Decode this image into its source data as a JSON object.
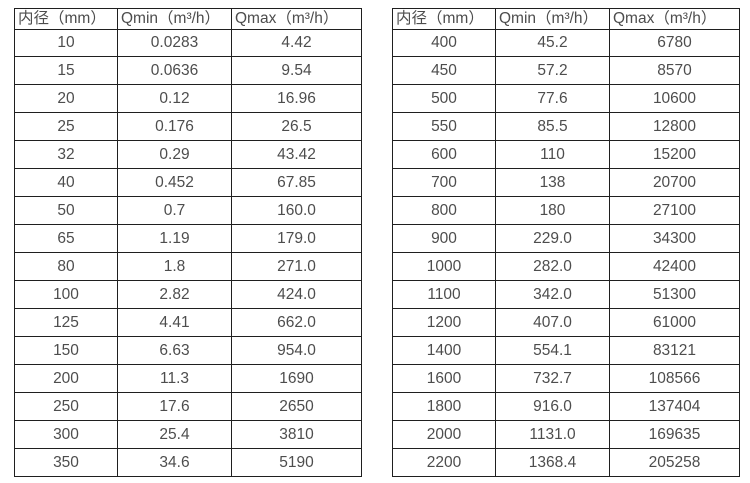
{
  "page": {
    "description": "Two side-by-side specification tables of pipe inner diameter vs minimum and maximum flow rate",
    "text_color": "#4d4d4d",
    "border_color": "#1f1f1f",
    "background_color": "#ffffff"
  },
  "tables": [
    {
      "headers": [
        "内径（mm）",
        "Qmin（m³/h）",
        "Qmax（m³/h）"
      ],
      "rows": [
        [
          "10",
          "0.0283",
          "4.42"
        ],
        [
          "15",
          "0.0636",
          "9.54"
        ],
        [
          "20",
          "0.12",
          "16.96"
        ],
        [
          "25",
          "0.176",
          "26.5"
        ],
        [
          "32",
          "0.29",
          "43.42"
        ],
        [
          "40",
          "0.452",
          "67.85"
        ],
        [
          "50",
          "0.7",
          "160.0"
        ],
        [
          "65",
          "1.19",
          "179.0"
        ],
        [
          "80",
          "1.8",
          "271.0"
        ],
        [
          "100",
          "2.82",
          "424.0"
        ],
        [
          "125",
          "4.41",
          "662.0"
        ],
        [
          "150",
          "6.63",
          "954.0"
        ],
        [
          "200",
          "11.3",
          "1690"
        ],
        [
          "250",
          "17.6",
          "2650"
        ],
        [
          "300",
          "25.4",
          "3810"
        ],
        [
          "350",
          "34.6",
          "5190"
        ]
      ]
    },
    {
      "headers": [
        "内径（mm）",
        "Qmin（m³/h）",
        "Qmax（m³/h）"
      ],
      "rows": [
        [
          "400",
          "45.2",
          "6780"
        ],
        [
          "450",
          "57.2",
          "8570"
        ],
        [
          "500",
          "77.6",
          "10600"
        ],
        [
          "550",
          "85.5",
          "12800"
        ],
        [
          "600",
          "110",
          "15200"
        ],
        [
          "700",
          "138",
          "20700"
        ],
        [
          "800",
          "180",
          "27100"
        ],
        [
          "900",
          "229.0",
          "34300"
        ],
        [
          "1000",
          "282.0",
          "42400"
        ],
        [
          "1100",
          "342.0",
          "51300"
        ],
        [
          "1200",
          "407.0",
          "61000"
        ],
        [
          "1400",
          "554.1",
          "83121"
        ],
        [
          "1600",
          "732.7",
          "108566"
        ],
        [
          "1800",
          "916.0",
          "137404"
        ],
        [
          "2000",
          "1131.0",
          "169635"
        ],
        [
          "2200",
          "1368.4",
          "205258"
        ]
      ]
    }
  ]
}
